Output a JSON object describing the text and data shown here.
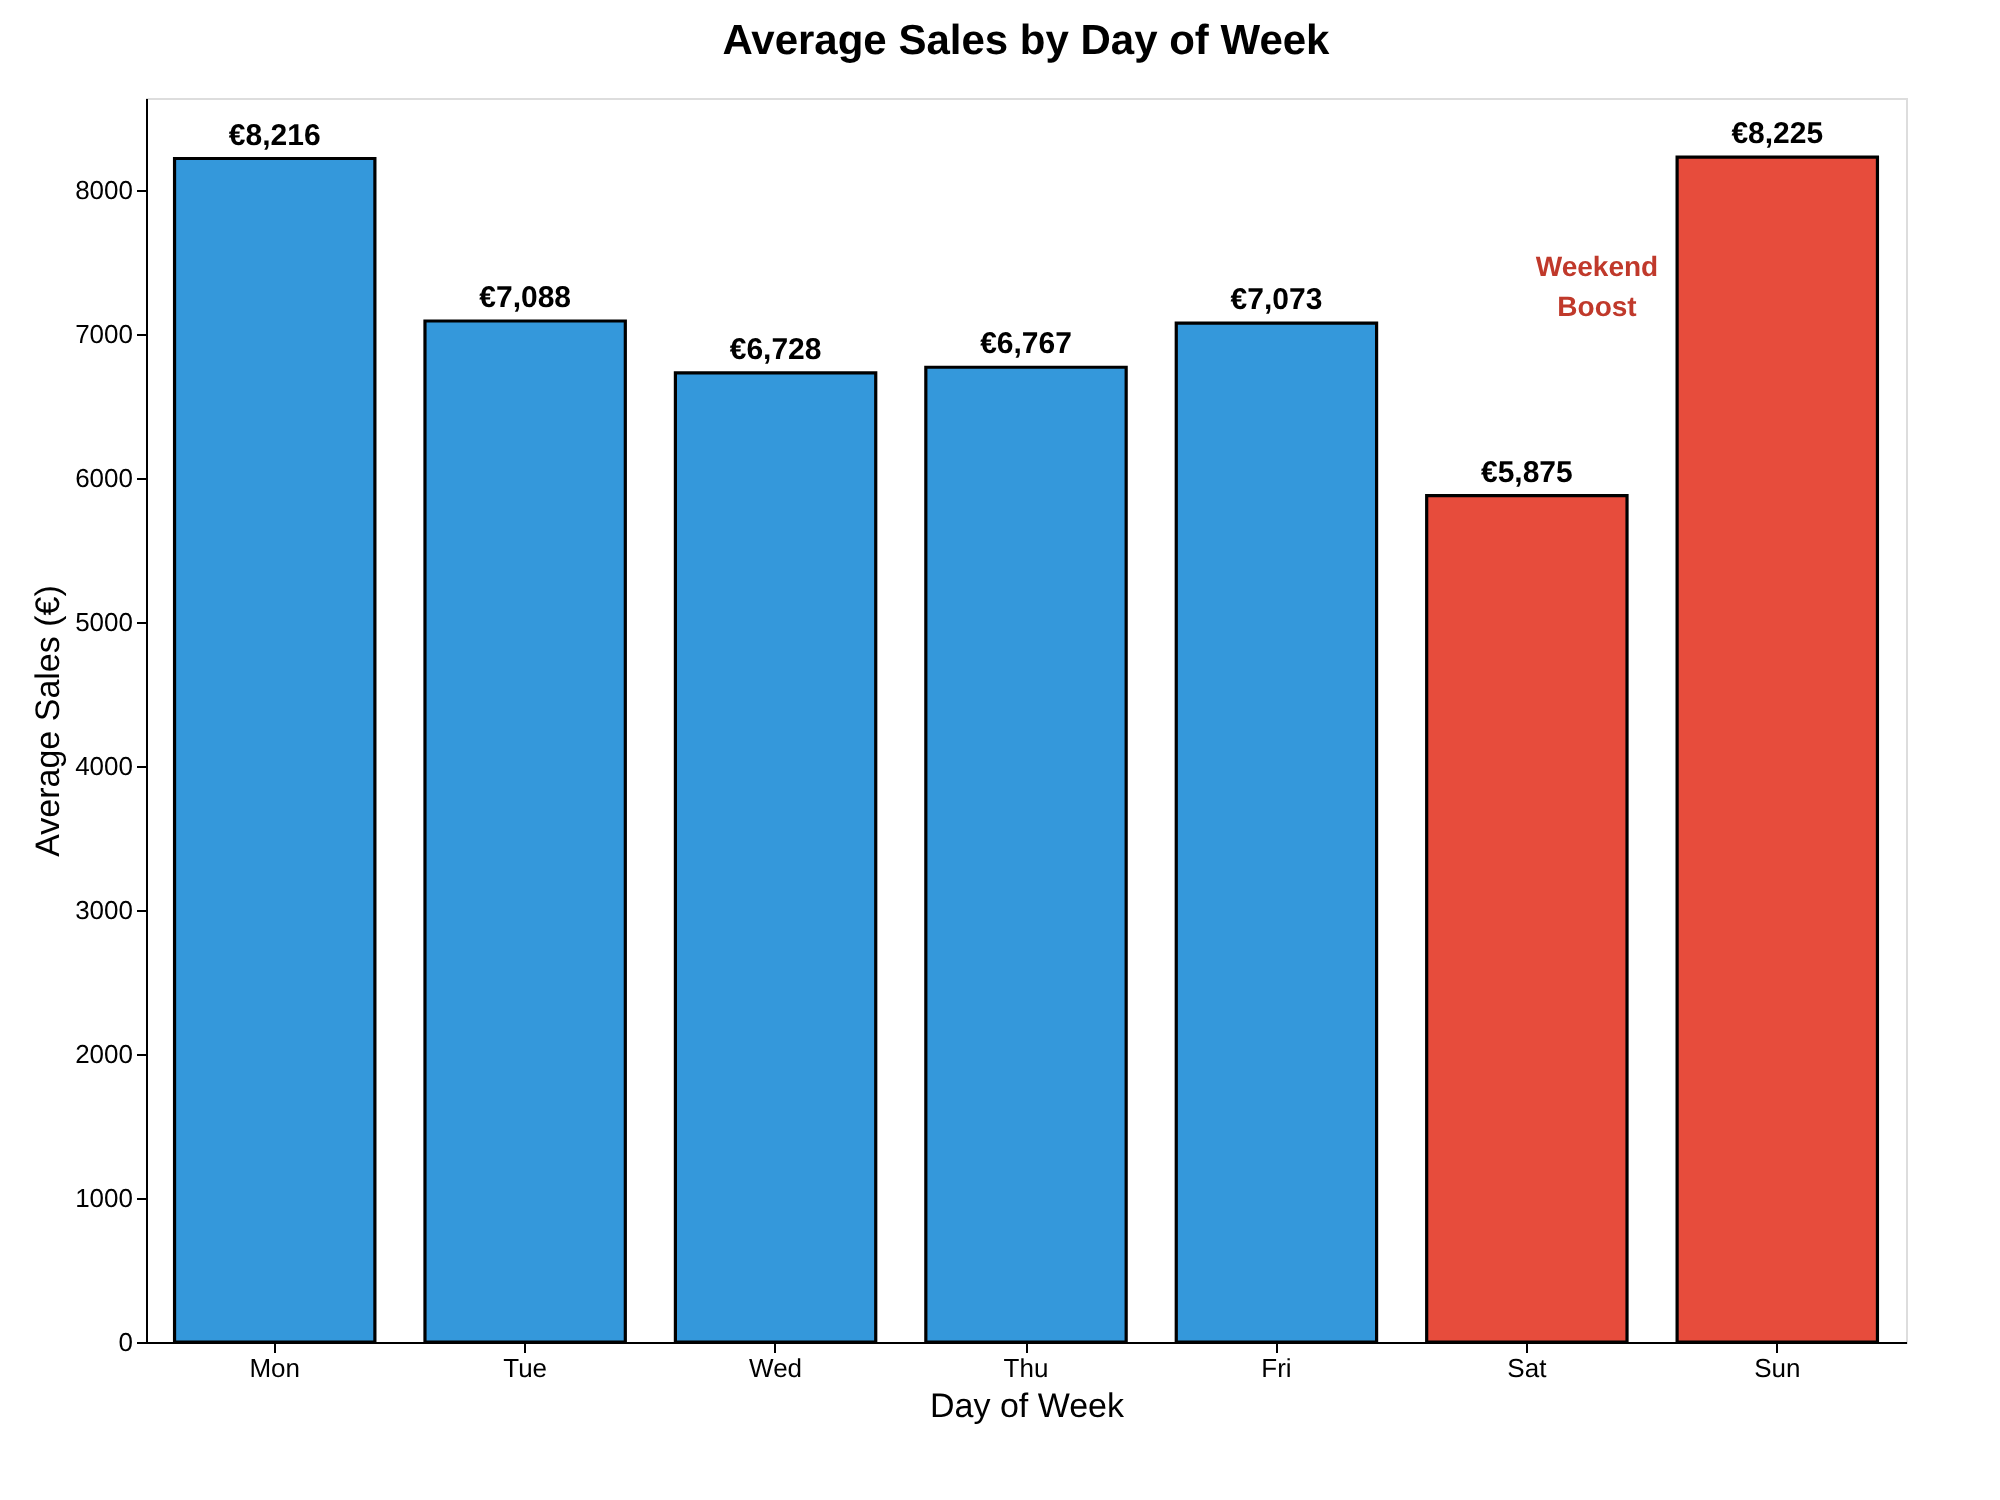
{
  "chart_data": {
    "type": "bar",
    "title": "Average Sales by Day of Week",
    "xlabel": "Day of Week",
    "ylabel": "Average Sales (€)",
    "categories": [
      "Mon",
      "Tue",
      "Wed",
      "Thu",
      "Fri",
      "Sat",
      "Sun"
    ],
    "values": [
      8216,
      7088,
      6728,
      6767,
      7073,
      5875,
      8225
    ],
    "colors": [
      "#3498db",
      "#3498db",
      "#3498db",
      "#3498db",
      "#3498db",
      "#e74c3c",
      "#e74c3c"
    ],
    "value_labels": [
      "€8,216",
      "€7,088",
      "€6,728",
      "€6,767",
      "€7,073",
      "€5,875",
      "€8,225"
    ],
    "annotations": [
      "Weekend\nBoost"
    ],
    "ylim": [
      0,
      8636
    ],
    "yticks": [
      0,
      1000,
      2000,
      3000,
      4000,
      5000,
      6000,
      7000,
      8000
    ],
    "grid": false
  }
}
